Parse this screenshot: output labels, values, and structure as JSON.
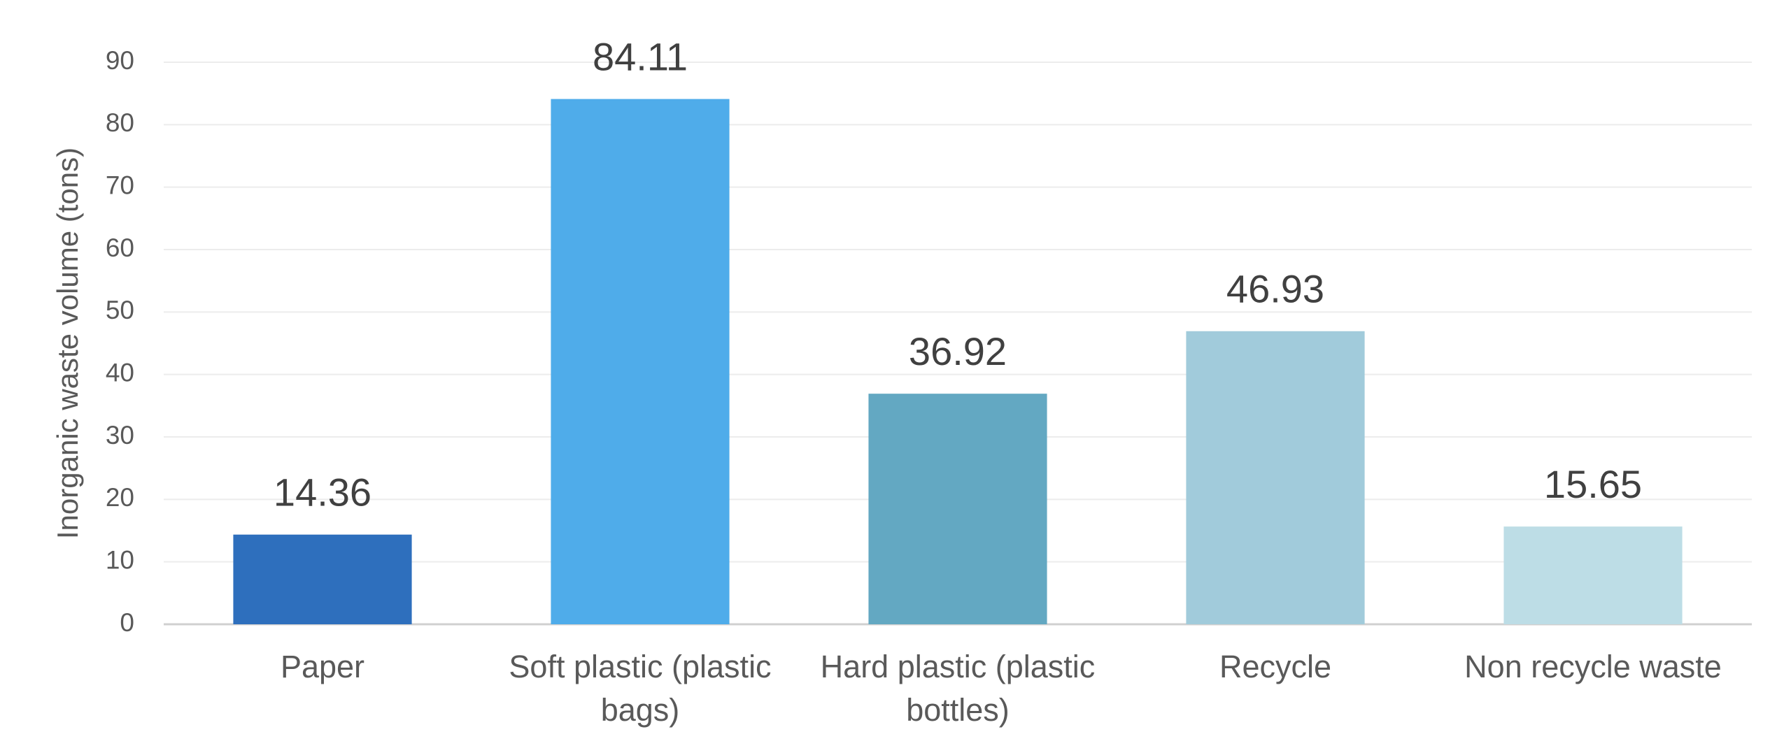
{
  "chart_data": {
    "type": "bar",
    "y_label": "Inorganic waste volume (tons)",
    "categories": [
      "Paper",
      "Soft plastic (plastic bags)",
      "Hard plastic (plastic bottles)",
      "Recycle",
      "Non recycle waste"
    ],
    "values": [
      14.36,
      84.11,
      36.92,
      46.93,
      15.65
    ],
    "colors": [
      "#2e6fbd",
      "#4facea",
      "#63a8c2",
      "#a1cbdb",
      "#bddde6"
    ],
    "ylim": [
      0,
      90
    ],
    "yticks": [
      0,
      10,
      20,
      30,
      40,
      50,
      60,
      70,
      80,
      90
    ],
    "grid": true
  }
}
